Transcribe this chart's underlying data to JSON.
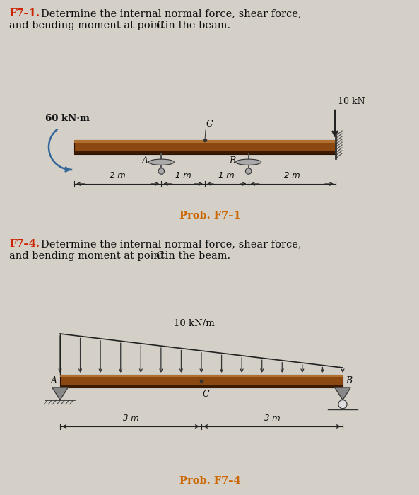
{
  "bg_color": "#d4d0c8",
  "title1_prefix": "F7–1.",
  "title2_prefix": "F7–4.",
  "prob1_label": "Prob. F7–1",
  "prob2_label": "Prob. F7–4",
  "beam_color": "#8B4810",
  "beam_top_color": "#c8a060",
  "support_color": "#777777",
  "arrow_color": "#222222",
  "orange_text": "#CC6600",
  "red_prefix": "#CC2200",
  "moment_label": "60 kN·m",
  "force_label": "10 kN",
  "dist_load_label": "10 kN/m",
  "dim1_2m_left": "2 m",
  "dim1_1m_left": "1 m",
  "dim1_1m_right": "1 m",
  "dim1_2m_right": "2 m",
  "dim2_3m_left": "3 m",
  "dim2_3m_right": "3 m",
  "text_color": "#111111",
  "blue_arrow": "#336699"
}
